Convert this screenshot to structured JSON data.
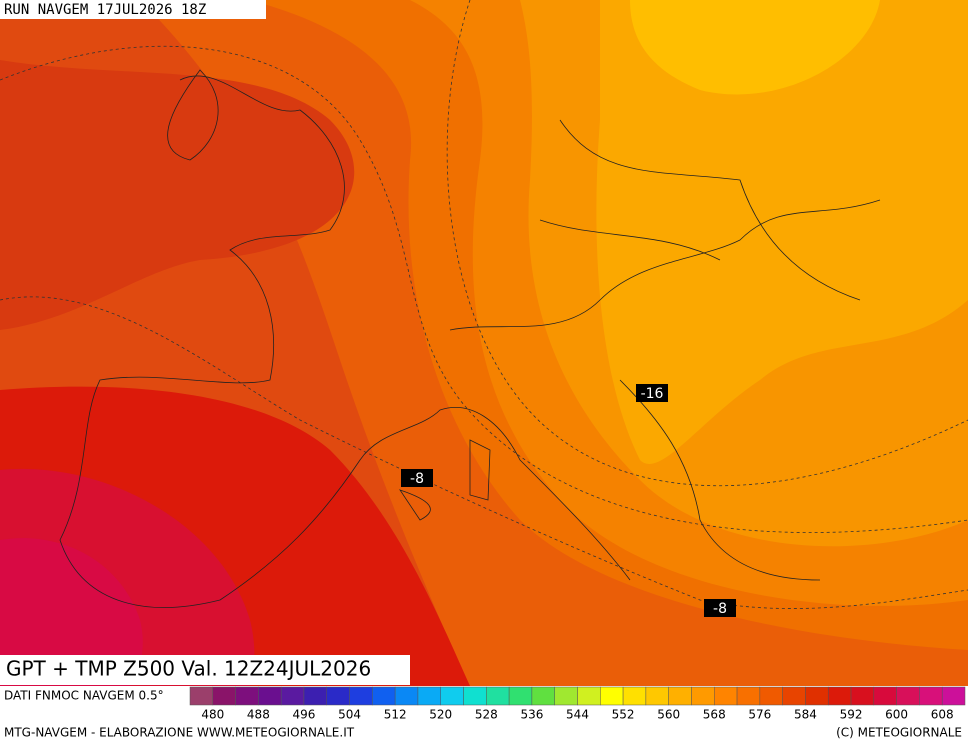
{
  "header": {
    "run": "RUN NAVGEM 17JUL2026 18Z"
  },
  "map": {
    "title": "GPT + TMP Z500 Val. 12Z24JUL2026",
    "contour_labels": [
      "-16",
      "-8",
      "-8"
    ]
  },
  "legend": {
    "source": "DATI FNMOC NAVGEM 0.5°",
    "range": [
      476,
      612
    ],
    "ticks": [
      480,
      488,
      496,
      504,
      512,
      520,
      528,
      536,
      544,
      552,
      560,
      568,
      576,
      584,
      592,
      600,
      608
    ],
    "colors": [
      "#9b3f6b",
      "#8a1469",
      "#7d0f7d",
      "#6a0f8f",
      "#5a1aa0",
      "#3c1fb0",
      "#2a2ac8",
      "#1e3ee0",
      "#1060f0",
      "#0a88f5",
      "#0aaaf5",
      "#10ccee",
      "#10e0d0",
      "#20e0a0",
      "#30e070",
      "#60e040",
      "#a0e830",
      "#d0f020",
      "#ffff00",
      "#ffe000",
      "#ffc800",
      "#ffb000",
      "#ff9a00",
      "#ff8400",
      "#f87000",
      "#f05a00",
      "#e84400",
      "#e03000",
      "#dc1a0a",
      "#d8101e",
      "#d80a3c",
      "#d8105a",
      "#d8107a",
      "#cc109a"
    ]
  },
  "footer": {
    "left": "MTG-NAVGEM - ELABORAZIONE WWW.METEOGIORNALE.IT",
    "right": "(C) METEOGIORNALE"
  }
}
